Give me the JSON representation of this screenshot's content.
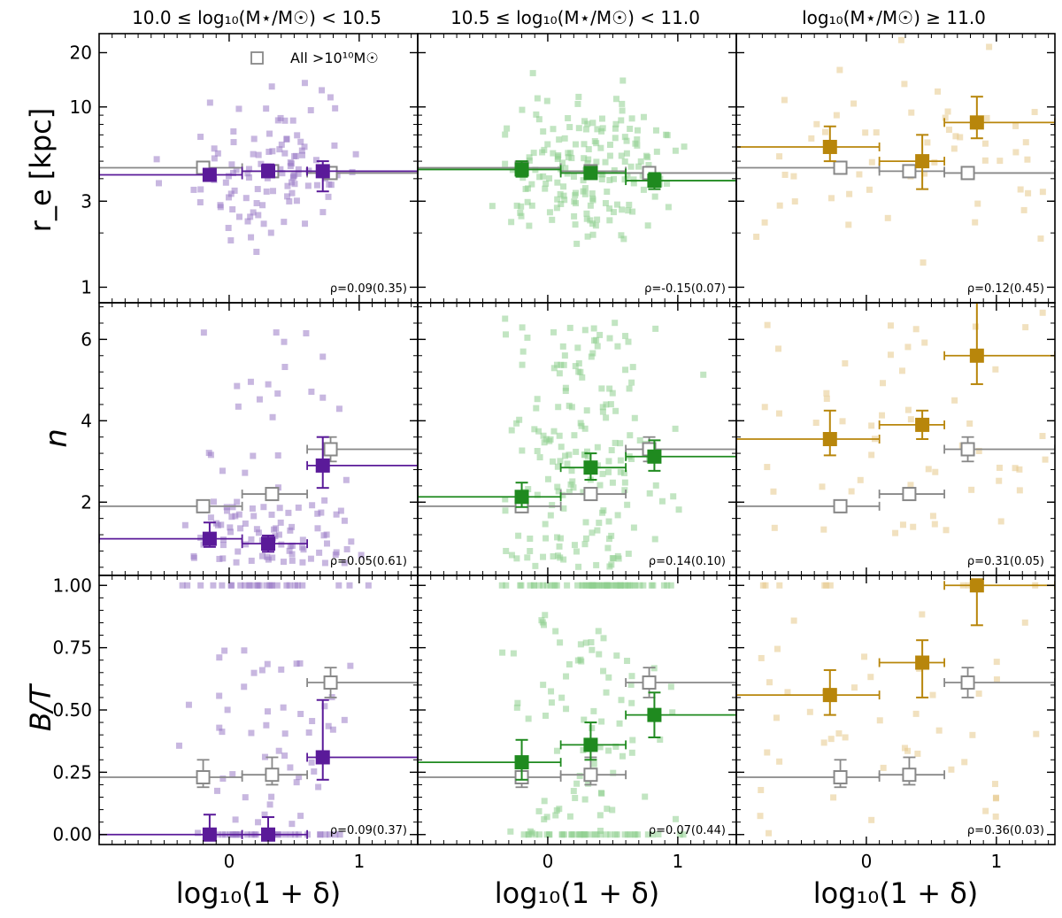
{
  "chart_data": {
    "type": "scatter",
    "figure": "Galaxy structural parameters vs local overdensity in three stellar-mass bins",
    "columns": [
      {
        "key": "low",
        "title": "10.0 ≤ log₁₀(M⋆/M☉) < 10.5",
        "color": "#5a1a99",
        "scatter_color": "#9b7bc6"
      },
      {
        "key": "mid",
        "title": "10.5 ≤ log₁₀(M⋆/M☉) < 11.0",
        "color": "#1f8a1f",
        "scatter_color": "#8fcf8f"
      },
      {
        "key": "high",
        "title": "log₁₀(M⋆/M☉) ≥ 11.0",
        "color": "#b8860b",
        "scatter_color": "#e6c98a"
      }
    ],
    "xaxis": {
      "label": "log₁₀(1 + δ)",
      "range": [
        -1.0,
        1.45
      ],
      "ticks": [
        0,
        1
      ],
      "tick_labels": [
        "0",
        "1"
      ]
    },
    "rows": [
      {
        "key": "re",
        "ylabel": "r_e [kpc]",
        "scale": "log",
        "range": [
          0.82,
          25.5
        ],
        "ticks": [
          1,
          3,
          10,
          20
        ],
        "tick_labels": [
          "1",
          "3",
          "10",
          "20"
        ]
      },
      {
        "key": "n",
        "ylabel": "n",
        "scale": "linear",
        "range": [
          0.2,
          6.9
        ],
        "ticks": [
          2,
          4,
          6
        ],
        "tick_labels": [
          "2",
          "4",
          "6"
        ]
      },
      {
        "key": "bt",
        "ylabel": "B/T",
        "scale": "linear",
        "range": [
          -0.04,
          1.04
        ],
        "ticks": [
          0.0,
          0.25,
          0.5,
          0.75,
          1.0
        ],
        "tick_labels": [
          "0.00",
          "0.25",
          "0.50",
          "0.75",
          "1.00"
        ]
      }
    ],
    "legend": {
      "label": "All  >10¹⁰M☉",
      "location": "top-right of first panel",
      "color": "#888888"
    },
    "all_reference": {
      "color": "#888888",
      "bins": [
        [
          -1.0,
          0.1
        ],
        [
          0.1,
          0.6
        ],
        [
          0.6,
          1.45
        ]
      ],
      "x": [
        -0.2,
        0.33,
        0.78
      ],
      "re": {
        "y": [
          4.6,
          4.4,
          4.3
        ],
        "err": [
          [
            0.3,
            0.3
          ],
          [
            0.3,
            0.3
          ],
          [
            0.3,
            0.3
          ]
        ]
      },
      "n": {
        "y": [
          1.9,
          2.2,
          3.3
        ],
        "err": [
          [
            0.15,
            0.15
          ],
          [
            0.15,
            0.15
          ],
          [
            0.3,
            0.3
          ]
        ]
      },
      "bt": {
        "y": [
          0.23,
          0.24,
          0.61
        ],
        "err": [
          [
            0.04,
            0.07
          ],
          [
            0.04,
            0.07
          ],
          [
            0.06,
            0.06
          ]
        ]
      }
    },
    "panels": [
      {
        "id": "re-low",
        "row": "re",
        "col": "low",
        "rho_label": "ρ=0.09(0.35)",
        "binned": {
          "x": [
            -0.15,
            0.3,
            0.72
          ],
          "bins": [
            [
              -1.0,
              0.1
            ],
            [
              0.1,
              0.6
            ],
            [
              0.6,
              1.45
            ]
          ],
          "y": [
            4.2,
            4.4,
            4.4
          ],
          "err": [
            [
              0.3,
              0.3
            ],
            [
              0.3,
              0.4
            ],
            [
              1.0,
              0.6
            ]
          ]
        }
      },
      {
        "id": "re-mid",
        "row": "re",
        "col": "mid",
        "rho_label": "ρ=-0.15(0.07)",
        "binned": {
          "x": [
            -0.2,
            0.33,
            0.82
          ],
          "bins": [
            [
              -1.0,
              0.1
            ],
            [
              0.1,
              0.6
            ],
            [
              0.6,
              1.45
            ]
          ],
          "y": [
            4.5,
            4.3,
            3.9
          ],
          "err": [
            [
              0.4,
              0.5
            ],
            [
              0.3,
              0.3
            ],
            [
              0.4,
              0.4
            ]
          ]
        }
      },
      {
        "id": "re-high",
        "row": "re",
        "col": "high",
        "rho_label": "ρ=0.12(0.45)",
        "binned": {
          "x": [
            -0.28,
            0.43,
            0.85
          ],
          "bins": [
            [
              -1.0,
              0.1
            ],
            [
              0.1,
              0.6
            ],
            [
              0.6,
              1.45
            ]
          ],
          "y": [
            6.0,
            5.0,
            8.2
          ],
          "err": [
            [
              1.0,
              1.8
            ],
            [
              1.5,
              2.0
            ],
            [
              1.5,
              3.2
            ]
          ]
        }
      },
      {
        "id": "n-low",
        "row": "n",
        "col": "low",
        "rho_label": "ρ=0.05(0.61)",
        "binned": {
          "x": [
            -0.15,
            0.3,
            0.72
          ],
          "bins": [
            [
              -1.0,
              0.1
            ],
            [
              0.1,
              0.6
            ],
            [
              0.6,
              1.45
            ]
          ],
          "y": [
            1.1,
            0.98,
            2.9
          ],
          "err": [
            [
              0.2,
              0.4
            ],
            [
              0.2,
              0.2
            ],
            [
              0.55,
              0.7
            ]
          ]
        }
      },
      {
        "id": "n-mid",
        "row": "n",
        "col": "mid",
        "rho_label": "ρ=0.14(0.10)",
        "binned": {
          "x": [
            -0.2,
            0.33,
            0.82
          ],
          "bins": [
            [
              -1.0,
              0.1
            ],
            [
              0.1,
              0.6
            ],
            [
              0.6,
              1.45
            ]
          ],
          "y": [
            2.13,
            2.85,
            3.12
          ],
          "err": [
            [
              0.25,
              0.35
            ],
            [
              0.3,
              0.35
            ],
            [
              0.35,
              0.4
            ]
          ]
        }
      },
      {
        "id": "n-high",
        "row": "n",
        "col": "high",
        "rho_label": "ρ=0.31(0.05)",
        "binned": {
          "x": [
            -0.28,
            0.43,
            0.85
          ],
          "bins": [
            [
              -1.0,
              0.1
            ],
            [
              0.1,
              0.6
            ],
            [
              0.6,
              1.45
            ]
          ],
          "y": [
            3.55,
            3.9,
            5.6
          ],
          "err": [
            [
              0.4,
              0.7
            ],
            [
              0.35,
              0.35
            ],
            [
              0.7,
              1.4
            ]
          ]
        }
      },
      {
        "id": "bt-low",
        "row": "bt",
        "col": "low",
        "rho_label": "ρ=0.09(0.37)",
        "binned": {
          "x": [
            -0.15,
            0.3,
            0.72
          ],
          "bins": [
            [
              -1.0,
              0.1
            ],
            [
              0.1,
              0.6
            ],
            [
              0.6,
              1.45
            ]
          ],
          "y": [
            0.0,
            0.0,
            0.31
          ],
          "err": [
            [
              0.0,
              0.08
            ],
            [
              0.0,
              0.07
            ],
            [
              0.09,
              0.23
            ]
          ]
        }
      },
      {
        "id": "bt-mid",
        "row": "bt",
        "col": "mid",
        "rho_label": "ρ=0.07(0.44)",
        "binned": {
          "x": [
            -0.2,
            0.33,
            0.82
          ],
          "bins": [
            [
              -1.0,
              0.1
            ],
            [
              0.1,
              0.6
            ],
            [
              0.6,
              1.45
            ]
          ],
          "y": [
            0.29,
            0.36,
            0.48
          ],
          "err": [
            [
              0.07,
              0.09
            ],
            [
              0.06,
              0.09
            ],
            [
              0.09,
              0.09
            ]
          ]
        }
      },
      {
        "id": "bt-high",
        "row": "bt",
        "col": "high",
        "rho_label": "ρ=0.36(0.03)",
        "binned": {
          "x": [
            -0.28,
            0.43,
            0.85
          ],
          "bins": [
            [
              -1.0,
              0.1
            ],
            [
              0.1,
              0.6
            ],
            [
              0.6,
              1.45
            ]
          ],
          "y": [
            0.56,
            0.69,
            1.0
          ],
          "err": [
            [
              0.08,
              0.1
            ],
            [
              0.14,
              0.09
            ],
            [
              0.16,
              0.0
            ]
          ]
        }
      }
    ]
  }
}
